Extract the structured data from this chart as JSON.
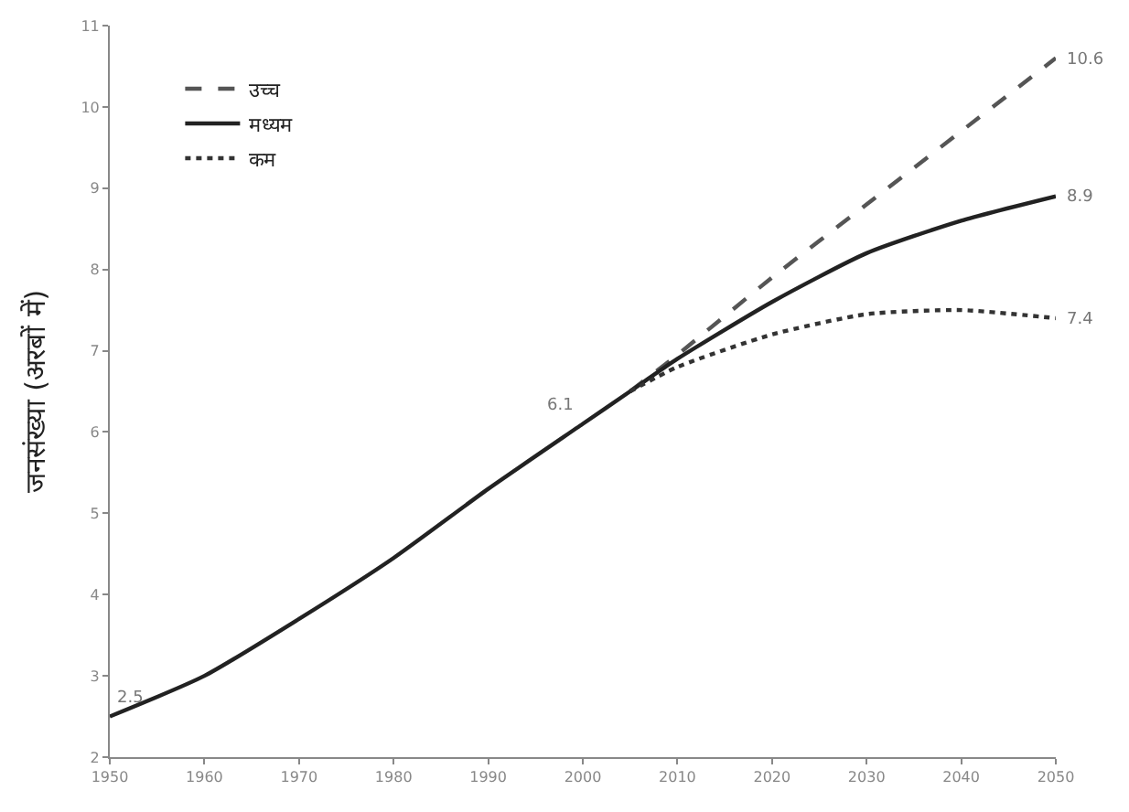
{
  "chart_data": {
    "type": "line",
    "ylabel": "जनसंख्या (अरबों में)",
    "xlim": [
      1950,
      2050
    ],
    "xticks": [
      1950,
      1960,
      1970,
      1980,
      1990,
      2000,
      2010,
      2020,
      2030,
      2040,
      2050
    ],
    "ylim": [
      2,
      11
    ],
    "yticks": [
      2,
      3,
      4,
      5,
      6,
      7,
      8,
      9,
      10,
      11
    ],
    "legend": "top left",
    "marker": "none",
    "series": [
      {
        "name": "उच्च",
        "color": "#555555",
        "line_style": "dashed",
        "x": [
          2005,
          2010,
          2020,
          2030,
          2040,
          2050
        ],
        "values": [
          6.5,
          6.95,
          7.9,
          8.8,
          9.7,
          10.6
        ],
        "value_labels": [
          null,
          null,
          null,
          null,
          null,
          "10.6"
        ]
      },
      {
        "name": "मध्यम",
        "color": "#222222",
        "line_style": "solid",
        "x": [
          1950,
          1960,
          1970,
          1980,
          1990,
          2000,
          2005,
          2010,
          2020,
          2030,
          2040,
          2050
        ],
        "values": [
          2.5,
          3.0,
          3.7,
          4.45,
          5.3,
          6.1,
          6.5,
          6.9,
          7.6,
          8.2,
          8.6,
          8.9
        ],
        "value_labels": [
          "2.5",
          null,
          null,
          null,
          null,
          "6.1",
          null,
          null,
          null,
          null,
          null,
          "8.9"
        ]
      },
      {
        "name": "कम",
        "color": "#333333",
        "line_style": "dotted",
        "x": [
          2005,
          2010,
          2020,
          2030,
          2040,
          2050
        ],
        "values": [
          6.5,
          6.8,
          7.2,
          7.45,
          7.5,
          7.4
        ],
        "value_labels": [
          null,
          null,
          null,
          null,
          null,
          "7.4"
        ]
      }
    ]
  }
}
